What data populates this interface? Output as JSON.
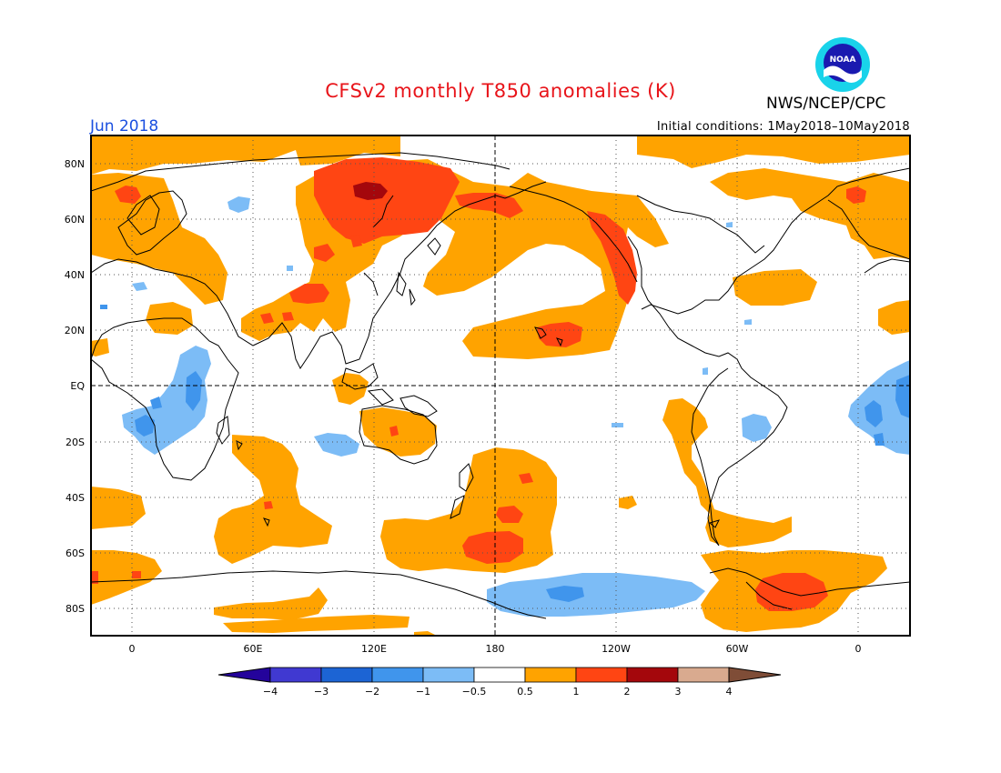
{
  "title": "CFSv2 monthly T850 anomalies (K)",
  "agency": "NWS/NCEP/CPC",
  "logo_text": "NOAA",
  "month": "Jun 2018",
  "initial_conditions": "Initial conditions: 1May2018–10May2018",
  "lat_labels": [
    "80N",
    "60N",
    "40N",
    "20N",
    "EQ",
    "20S",
    "40S",
    "60S",
    "80S"
  ],
  "lon_labels": [
    "0",
    "60E",
    "120E",
    "180",
    "120W",
    "60W",
    "0"
  ],
  "colorbar": {
    "labels": [
      "−4",
      "−3",
      "−2",
      "−1",
      "−0.5",
      "0.5",
      "1",
      "2",
      "3",
      "4"
    ],
    "colors": [
      "#24039b",
      "#4039d1",
      "#1c64d4",
      "#4095ec",
      "#7cbcf6",
      "#ffffff",
      "#ffa300",
      "#ff4513",
      "#a4070c",
      "#d9aa8f",
      "#7f4d37"
    ]
  },
  "colors": {
    "warm1": "#ffa300",
    "warm2": "#ff4513",
    "warm3": "#a4070c",
    "cool1": "#7cbcf6",
    "cool2": "#4095ec",
    "title": "#e8141a",
    "month": "#1a4fe0"
  }
}
